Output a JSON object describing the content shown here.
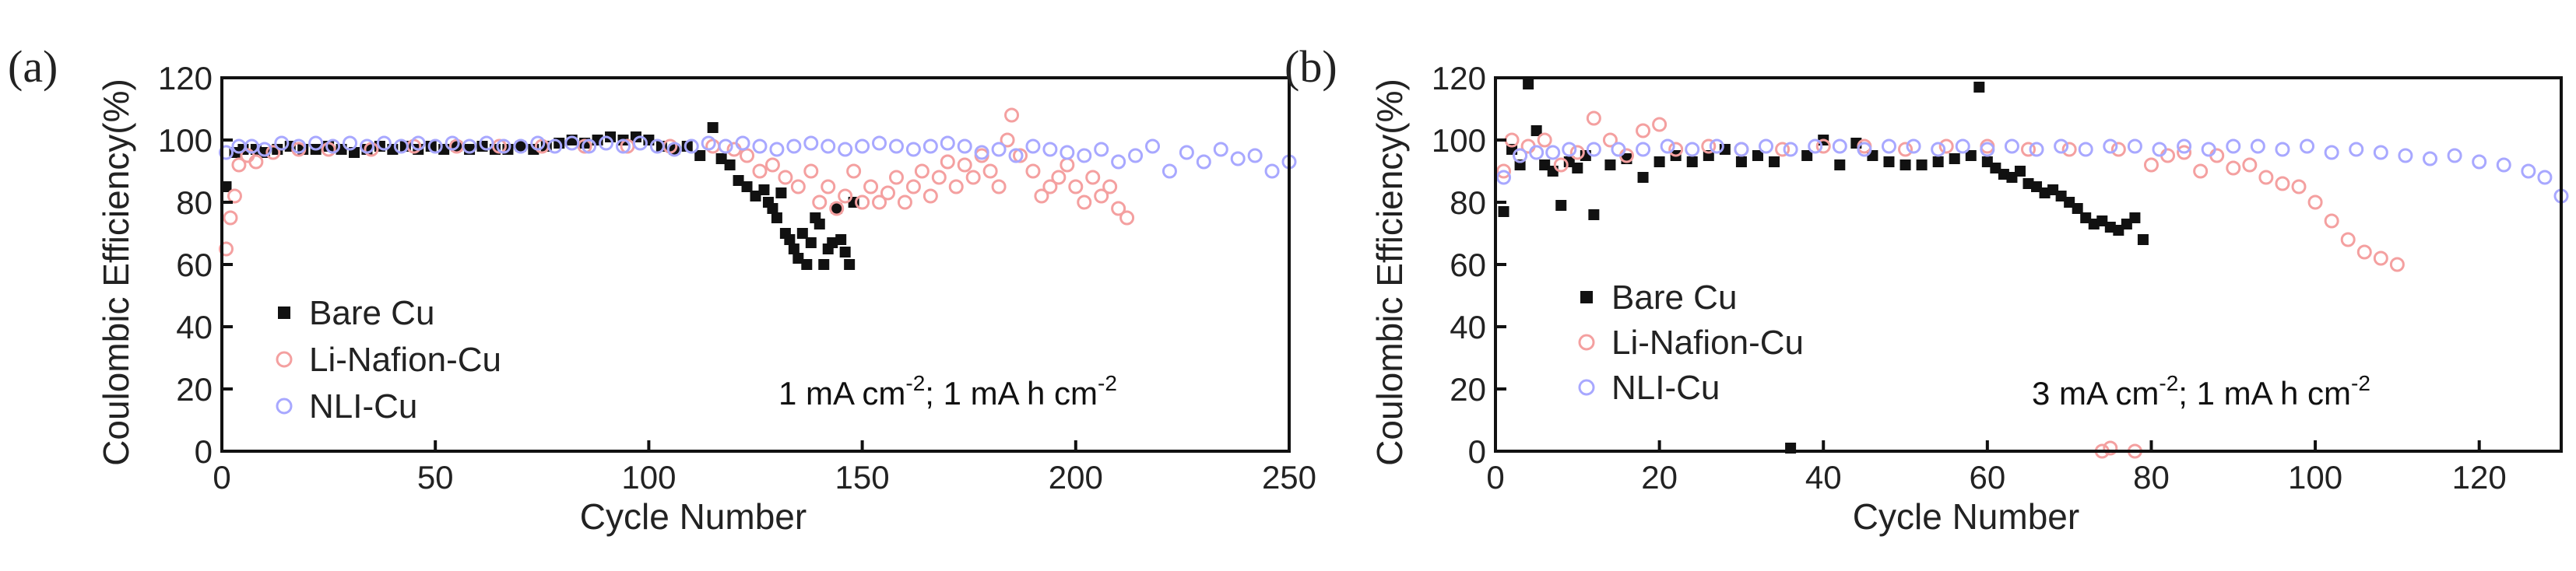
{
  "chart_data": [
    {
      "type": "scatter",
      "panel_label": "(a)",
      "xlabel": "Cycle Number",
      "ylabel": "Coulombic Efficiency(%)",
      "xlim": [
        0,
        250
      ],
      "ylim": [
        0,
        120
      ],
      "xticks": [
        "0",
        "50",
        "100",
        "150",
        "200",
        "250"
      ],
      "yticks": [
        "0",
        "20",
        "40",
        "60",
        "80",
        "100",
        "120"
      ],
      "condition": {
        "prefix": "1 mA cm",
        "sup1": "-2",
        "mid": "; 1 mA h cm",
        "sup2": "-2"
      },
      "series": [
        {
          "name": "Bare Cu",
          "color": "#111111",
          "marker": "square",
          "x": [
            1,
            3,
            5,
            8,
            10,
            13,
            16,
            19,
            22,
            25,
            28,
            31,
            34,
            37,
            40,
            43,
            46,
            49,
            52,
            55,
            58,
            61,
            64,
            67,
            70,
            73,
            76,
            79,
            82,
            85,
            88,
            91,
            94,
            97,
            100,
            103,
            106,
            109,
            112,
            115,
            117,
            119,
            121,
            123,
            125,
            127,
            128,
            129,
            130,
            131,
            132,
            133,
            134,
            135,
            136,
            137,
            138,
            139,
            140,
            141,
            142,
            143,
            144,
            145,
            146,
            147,
            148
          ],
          "y": [
            85,
            96,
            97,
            97,
            96,
            97,
            98,
            97,
            97,
            98,
            97,
            96,
            97,
            98,
            97,
            98,
            97,
            98,
            97,
            98,
            97,
            98,
            97,
            97,
            98,
            97,
            98,
            99,
            100,
            99,
            100,
            101,
            100,
            101,
            100,
            98,
            97,
            98,
            95,
            104,
            94,
            92,
            87,
            85,
            82,
            84,
            80,
            78,
            75,
            83,
            70,
            68,
            65,
            62,
            70,
            60,
            67,
            75,
            73,
            60,
            65,
            67,
            78,
            68,
            64,
            60,
            80
          ],
          "x_pos": [],
          "y_pos": []
        },
        {
          "name": "Li-Nafion-Cu",
          "color": "#f4a0a0",
          "marker": "circle",
          "x": [
            1,
            2,
            3,
            4,
            6,
            8,
            12,
            18,
            25,
            35,
            45,
            55,
            65,
            75,
            85,
            95,
            105,
            115,
            120,
            123,
            126,
            129,
            132,
            135,
            138,
            140,
            142,
            144,
            146,
            148,
            150,
            152,
            154,
            156,
            158,
            160,
            162,
            164,
            166,
            168,
            170,
            172,
            174,
            176,
            178,
            180,
            182,
            184,
            185,
            187,
            190,
            192,
            194,
            196,
            198,
            200,
            202,
            204,
            206,
            208,
            210,
            212
          ],
          "y": [
            65,
            75,
            82,
            92,
            95,
            93,
            96,
            97,
            97,
            97,
            98,
            98,
            98,
            98,
            98,
            98,
            98,
            98,
            97,
            95,
            90,
            92,
            88,
            85,
            90,
            80,
            85,
            78,
            82,
            90,
            80,
            85,
            80,
            83,
            88,
            80,
            85,
            90,
            82,
            88,
            93,
            85,
            92,
            88,
            95,
            90,
            85,
            100,
            108,
            95,
            90,
            82,
            85,
            88,
            92,
            85,
            80,
            88,
            82,
            85,
            78,
            75
          ]
        },
        {
          "name": "NLI-Cu",
          "color": "#a8a8ff",
          "marker": "circle",
          "x": [
            1,
            4,
            7,
            10,
            14,
            18,
            22,
            26,
            30,
            34,
            38,
            42,
            46,
            50,
            54,
            58,
            62,
            66,
            70,
            74,
            78,
            82,
            86,
            90,
            94,
            98,
            102,
            106,
            110,
            114,
            118,
            122,
            126,
            130,
            134,
            138,
            142,
            146,
            150,
            154,
            158,
            162,
            166,
            170,
            174,
            178,
            182,
            186,
            190,
            194,
            198,
            202,
            206,
            210,
            214,
            218,
            222,
            226,
            230,
            234,
            238,
            242,
            246,
            250
          ],
          "y": [
            96,
            98,
            98,
            97,
            99,
            98,
            99,
            98,
            99,
            98,
            99,
            98,
            99,
            98,
            99,
            98,
            99,
            98,
            98,
            99,
            98,
            99,
            98,
            99,
            98,
            99,
            98,
            97,
            98,
            99,
            98,
            99,
            98,
            97,
            98,
            99,
            98,
            97,
            98,
            99,
            98,
            97,
            98,
            99,
            98,
            96,
            97,
            95,
            98,
            97,
            96,
            95,
            97,
            93,
            95,
            98,
            90,
            96,
            93,
            97,
            94,
            95,
            90,
            93
          ]
        }
      ],
      "legend": [
        "Bare Cu",
        "Li-Nafion-Cu",
        "NLI-Cu"
      ]
    },
    {
      "type": "scatter",
      "panel_label": "(b)",
      "xlabel": "Cycle Number",
      "ylabel": "Coulombic Efficiency(%)",
      "xlim": [
        0,
        130
      ],
      "ylim": [
        0,
        120
      ],
      "xticks": [
        "0",
        "20",
        "40",
        "60",
        "80",
        "100",
        "120"
      ],
      "yticks": [
        "0",
        "20",
        "40",
        "60",
        "80",
        "100",
        "120"
      ],
      "condition": {
        "prefix": "3 mA cm",
        "sup1": "-2",
        "mid": "; 1 mA h cm",
        "sup2": "-2"
      },
      "series": [
        {
          "name": "Bare Cu",
          "color": "#111111",
          "marker": "square",
          "x": [
            1,
            2,
            3,
            4,
            5,
            6,
            7,
            8,
            9,
            10,
            11,
            12,
            14,
            16,
            18,
            20,
            22,
            24,
            26,
            28,
            30,
            32,
            34,
            36,
            38,
            40,
            42,
            44,
            46,
            48,
            50,
            52,
            54,
            56,
            58,
            59,
            60,
            61,
            62,
            63,
            64,
            65,
            66,
            67,
            68,
            69,
            70,
            71,
            72,
            73,
            74,
            75,
            76,
            77,
            78,
            79
          ],
          "y": [
            77,
            97,
            92,
            118,
            103,
            92,
            90,
            79,
            93,
            91,
            95,
            76,
            92,
            94,
            88,
            93,
            95,
            93,
            95,
            97,
            93,
            95,
            93,
            1,
            95,
            100,
            92,
            99,
            95,
            93,
            92,
            92,
            93,
            94,
            95,
            117,
            93,
            91,
            89,
            88,
            90,
            86,
            85,
            83,
            84,
            82,
            80,
            78,
            75,
            73,
            74,
            72,
            71,
            73,
            75,
            68
          ],
          "x_pos": [],
          "y_pos": []
        },
        {
          "name": "Li-Nafion-Cu",
          "color": "#f4a0a0",
          "marker": "circle",
          "x": [
            1,
            2,
            3,
            4,
            6,
            8,
            10,
            12,
            14,
            16,
            18,
            20,
            22,
            26,
            30,
            35,
            40,
            45,
            50,
            55,
            60,
            65,
            70,
            74,
            75,
            76,
            78,
            80,
            82,
            84,
            86,
            88,
            90,
            92,
            94,
            96,
            98,
            100,
            102,
            104,
            106,
            108,
            110
          ],
          "y": [
            90,
            100,
            95,
            98,
            100,
            92,
            96,
            107,
            100,
            95,
            103,
            105,
            97,
            98,
            97,
            97,
            98,
            98,
            97,
            98,
            98,
            97,
            97,
            0,
            1,
            97,
            0,
            92,
            95,
            96,
            90,
            95,
            91,
            92,
            88,
            86,
            85,
            80,
            74,
            68,
            64,
            62,
            60
          ]
        },
        {
          "name": "NLI-Cu",
          "color": "#a8a8ff",
          "marker": "circle",
          "x": [
            1,
            3,
            5,
            7,
            9,
            12,
            15,
            18,
            21,
            24,
            27,
            30,
            33,
            36,
            39,
            42,
            45,
            48,
            51,
            54,
            57,
            60,
            63,
            66,
            69,
            72,
            75,
            78,
            81,
            84,
            87,
            90,
            93,
            96,
            99,
            102,
            105,
            108,
            111,
            114,
            117,
            120,
            123,
            126,
            128,
            130
          ],
          "y": [
            88,
            95,
            96,
            96,
            97,
            97,
            97,
            97,
            98,
            97,
            98,
            97,
            98,
            97,
            98,
            98,
            97,
            98,
            98,
            97,
            98,
            97,
            98,
            97,
            98,
            97,
            98,
            98,
            97,
            98,
            97,
            98,
            98,
            97,
            98,
            96,
            97,
            96,
            95,
            94,
            95,
            93,
            92,
            90,
            88,
            82
          ]
        }
      ],
      "legend": [
        "Bare Cu",
        "Li-Nafion-Cu",
        "NLI-Cu"
      ]
    }
  ]
}
